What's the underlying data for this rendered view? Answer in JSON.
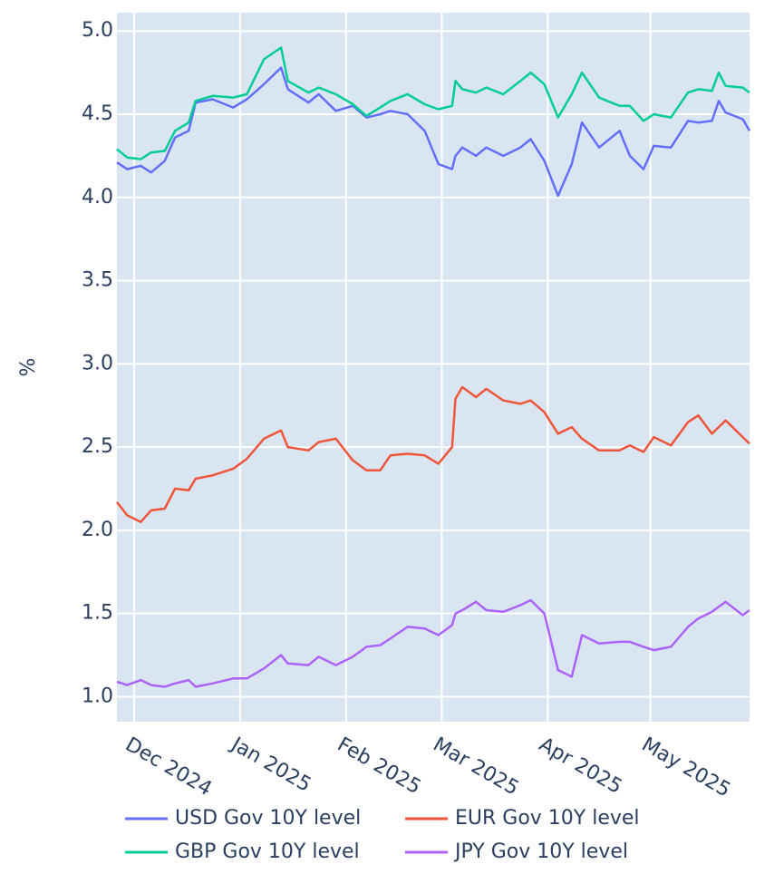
{
  "chart_data": {
    "type": "line",
    "y_label": "%",
    "x": [
      "2024-11-26",
      "2024-11-29",
      "2024-12-03",
      "2024-12-06",
      "2024-12-10",
      "2024-12-13",
      "2024-12-17",
      "2024-12-19",
      "2024-12-24",
      "2024-12-30",
      "2025-01-03",
      "2025-01-08",
      "2025-01-13",
      "2025-01-15",
      "2025-01-21",
      "2025-01-24",
      "2025-01-29",
      "2025-02-03",
      "2025-02-07",
      "2025-02-11",
      "2025-02-14",
      "2025-02-19",
      "2025-02-24",
      "2025-02-28",
      "2025-03-04",
      "2025-03-05",
      "2025-03-07",
      "2025-03-11",
      "2025-03-14",
      "2025-03-19",
      "2025-03-24",
      "2025-03-27",
      "2025-03-31",
      "2025-04-04",
      "2025-04-08",
      "2025-04-11",
      "2025-04-16",
      "2025-04-22",
      "2025-04-25",
      "2025-04-29",
      "2025-05-02",
      "2025-05-07",
      "2025-05-12",
      "2025-05-15",
      "2025-05-19",
      "2025-05-21",
      "2025-05-23",
      "2025-05-28",
      "2025-05-30"
    ],
    "series": [
      {
        "name": "USD Gov 10Y level",
        "color": "#636efa",
        "values": [
          4.21,
          4.17,
          4.19,
          4.15,
          4.22,
          4.36,
          4.4,
          4.57,
          4.59,
          4.54,
          4.59,
          4.68,
          4.78,
          4.65,
          4.57,
          4.62,
          4.52,
          4.55,
          4.48,
          4.5,
          4.52,
          4.5,
          4.4,
          4.2,
          4.17,
          4.25,
          4.3,
          4.25,
          4.3,
          4.25,
          4.3,
          4.35,
          4.22,
          4.01,
          4.2,
          4.45,
          4.3,
          4.4,
          4.25,
          4.17,
          4.31,
          4.3,
          4.46,
          4.45,
          4.46,
          4.58,
          4.51,
          4.47,
          4.4
        ]
      },
      {
        "name": "EUR Gov 10Y level",
        "color": "#ef553b",
        "values": [
          2.17,
          2.09,
          2.05,
          2.12,
          2.13,
          2.25,
          2.24,
          2.31,
          2.33,
          2.37,
          2.43,
          2.55,
          2.6,
          2.5,
          2.48,
          2.53,
          2.55,
          2.42,
          2.36,
          2.36,
          2.45,
          2.46,
          2.45,
          2.4,
          2.5,
          2.79,
          2.86,
          2.8,
          2.85,
          2.78,
          2.76,
          2.78,
          2.71,
          2.58,
          2.62,
          2.55,
          2.48,
          2.48,
          2.51,
          2.47,
          2.56,
          2.51,
          2.65,
          2.69,
          2.58,
          2.62,
          2.66,
          2.56,
          2.52
        ]
      },
      {
        "name": "GBP Gov 10Y level",
        "color": "#00cc96",
        "values": [
          4.29,
          4.24,
          4.23,
          4.27,
          4.28,
          4.4,
          4.45,
          4.58,
          4.61,
          4.6,
          4.62,
          4.83,
          4.9,
          4.7,
          4.63,
          4.66,
          4.62,
          4.56,
          4.49,
          4.54,
          4.58,
          4.62,
          4.56,
          4.53,
          4.55,
          4.7,
          4.65,
          4.63,
          4.66,
          4.62,
          4.7,
          4.75,
          4.68,
          4.48,
          4.62,
          4.75,
          4.6,
          4.55,
          4.55,
          4.46,
          4.5,
          4.48,
          4.63,
          4.65,
          4.64,
          4.75,
          4.67,
          4.66,
          4.63
        ]
      },
      {
        "name": "JPY Gov 10Y level",
        "color": "#ab63fa",
        "values": [
          1.09,
          1.07,
          1.1,
          1.07,
          1.06,
          1.08,
          1.1,
          1.06,
          1.08,
          1.11,
          1.11,
          1.17,
          1.25,
          1.2,
          1.19,
          1.24,
          1.19,
          1.24,
          1.3,
          1.31,
          1.35,
          1.42,
          1.41,
          1.37,
          1.43,
          1.5,
          1.52,
          1.57,
          1.52,
          1.51,
          1.55,
          1.58,
          1.5,
          1.16,
          1.12,
          1.37,
          1.32,
          1.33,
          1.33,
          1.3,
          1.28,
          1.3,
          1.42,
          1.47,
          1.51,
          1.54,
          1.57,
          1.49,
          1.52
        ]
      }
    ],
    "xlim": [
      "2024-11-26",
      "2025-05-30"
    ],
    "xticks": [
      {
        "value": "2024-12-01",
        "label": "Dec 2024"
      },
      {
        "value": "2025-01-01",
        "label": "Jan 2025"
      },
      {
        "value": "2025-02-01",
        "label": "Feb 2025"
      },
      {
        "value": "2025-03-01",
        "label": "Mar 2025"
      },
      {
        "value": "2025-04-01",
        "label": "Apr 2025"
      },
      {
        "value": "2025-05-01",
        "label": "May 2025"
      }
    ],
    "ylim": [
      0.85,
      5.11
    ],
    "yticks": [
      {
        "value": 1,
        "label": "1.0"
      },
      1.5,
      {
        "value": 2,
        "label": "2.0"
      },
      2.5,
      {
        "value": 3,
        "label": "3.0"
      },
      3.5,
      {
        "value": 4,
        "label": "4.0"
      },
      4.5,
      {
        "value": 5,
        "label": "5.0"
      }
    ],
    "grid": true,
    "legend": "bottom"
  }
}
